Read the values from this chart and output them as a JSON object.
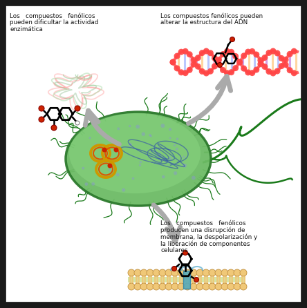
{
  "background_color": "#ffffff",
  "border_color": "#1a1a1a",
  "text_top_left_line1": "Los   compuestos   fenólicos",
  "text_top_left_line2": "pueden dificultar la actividad",
  "text_top_left_line3": "enzimática",
  "text_top_right_line1": "Los compuestos fenólicos pueden",
  "text_top_right_line2": "alterar la estructura del ADN",
  "text_bot_right_line1": "Los   compuestos   fenólicos",
  "text_bot_right_line2": "producen una disrupción de",
  "text_bot_right_line3": "membrana, la despolarización y",
  "text_bot_right_line4": "la liberación de componentes",
  "text_bot_right_line5": "celulares",
  "arrow_color": "#aaaaaa",
  "bacteria_fill": "#6dbb65",
  "bacteria_edge": "#2d7a2d",
  "flagella_color": "#1a7a1a",
  "ring_color_outer": "#ccaa00",
  "ring_color_inner": "#dd6600",
  "dna_blue": "#3355aa",
  "ribosome_color": "#8899cc",
  "dna_top_color": "#ff7777",
  "dna_rung_colors": [
    "#dd88dd",
    "#ffaaaa",
    "#aabbff"
  ],
  "membrane_head_color": "#f0c878",
  "membrane_tail_color": "#f0c878",
  "membrane_green": "#c8dd88",
  "channel_color": "#55aabb"
}
